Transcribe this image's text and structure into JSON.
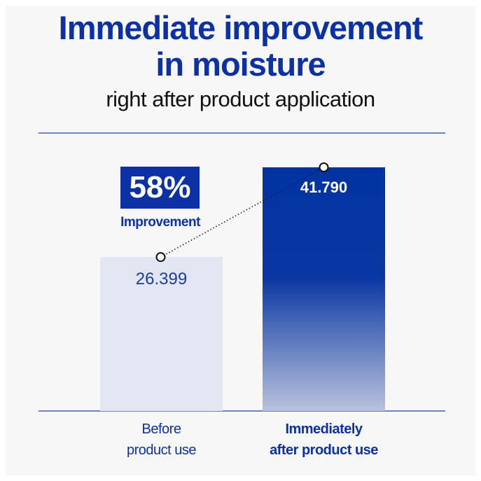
{
  "chart_data": {
    "type": "bar",
    "title": "Immediate improvement\nin moisture",
    "subtitle": "right after product application",
    "categories": [
      "Before\nproduct use",
      "Immediately\nafter product use"
    ],
    "values": [
      26.399,
      41.79
    ],
    "value_labels": [
      "26.399",
      "41.790"
    ],
    "annotation": {
      "value": "58%",
      "label": "Improvement"
    }
  }
}
